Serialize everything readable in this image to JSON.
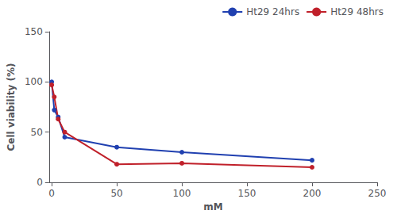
{
  "chart_data": {
    "type": "line",
    "x": [
      0,
      2,
      5,
      10,
      50,
      100,
      200
    ],
    "series": [
      {
        "name": "Ht29 24hrs",
        "color": "#2040b0",
        "marker": "circle",
        "values": [
          100,
          72,
          65,
          45,
          35,
          30,
          22
        ]
      },
      {
        "name": "Ht29 48hrs",
        "color": "#c0202a",
        "marker": "circle",
        "values": [
          97,
          85,
          63,
          50,
          18,
          19,
          15
        ]
      }
    ],
    "xlabel": "mM",
    "ylabel": "Cell viability (%)",
    "xlim": [
      -2,
      250
    ],
    "ylim": [
      0,
      150
    ],
    "xticks": [
      0,
      50,
      100,
      150,
      200,
      250
    ],
    "yticks": [
      0,
      50,
      100,
      150
    ],
    "legend": "upper right",
    "grid": false
  }
}
